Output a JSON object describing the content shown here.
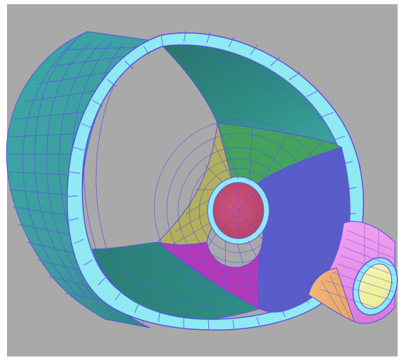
{
  "viewport": {
    "background_color": "#a9a9a9",
    "frame_color": "#ffffff"
  },
  "model": {
    "type": "pipe-tee-mesh",
    "mesh_line_color": "#5b50e6",
    "rim_color": "#8feaf3",
    "colors": {
      "outer_shell": "#3f9e9f",
      "inner_shell_upper": "#2f8f86",
      "inner_shell_lower": "#2b8a82",
      "region_green": "#43a35d",
      "region_yellow": "#b2b05b",
      "region_blue": "#5a5cc8",
      "region_magenta": "#b33ab7",
      "region_red": "#c64b6e",
      "branch_pink": "#e58de6",
      "branch_orange": "#f0b070",
      "branch_yellow": "#eef29a"
    }
  }
}
